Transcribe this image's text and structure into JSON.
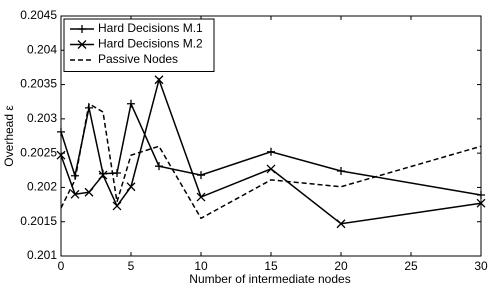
{
  "chart_data": {
    "type": "line",
    "xlabel": "Number of intermediate nodes",
    "ylabel": "Overhead ε",
    "x": [
      0,
      1,
      2,
      3,
      4,
      5,
      7,
      10,
      15,
      20,
      30
    ],
    "series": [
      {
        "name": "Hard Decisions M.1",
        "color": "#000000",
        "marker": "plus",
        "dash": "solid",
        "values": [
          0.20281,
          0.20217,
          0.20316,
          0.2022,
          0.20221,
          0.20322,
          0.20231,
          0.20218,
          0.20252,
          0.20224,
          0.20189
        ]
      },
      {
        "name": "Hard Decisions M.2",
        "color": "#000000",
        "marker": "x",
        "dash": "solid",
        "values": [
          0.20247,
          0.2019,
          0.20193,
          0.20218,
          0.20173,
          0.20201,
          0.20357,
          0.20186,
          0.20227,
          0.20147,
          0.20177
        ]
      },
      {
        "name": "Passive Nodes",
        "color": "#000000",
        "marker": "none",
        "dash": "dashed",
        "values": [
          0.2017,
          0.20211,
          0.20322,
          0.2031,
          0.20179,
          0.20247,
          0.2026,
          0.20155,
          0.20211,
          0.20201,
          0.2026
        ]
      }
    ],
    "xlim": [
      0,
      30
    ],
    "xticks": [
      0,
      5,
      10,
      15,
      20,
      25,
      30
    ],
    "ylim": [
      0.201,
      0.2045
    ],
    "yticks": [
      0.201,
      0.2015,
      0.202,
      0.2025,
      0.203,
      0.2035,
      0.204,
      0.2045
    ],
    "legend": "upper left"
  }
}
